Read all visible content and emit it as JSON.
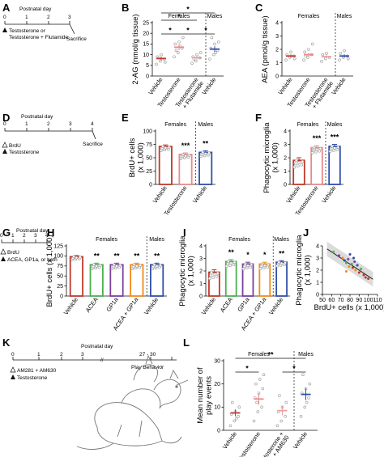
{
  "figure": {
    "panel_letters": [
      "A",
      "B",
      "C",
      "D",
      "E",
      "F",
      "G",
      "H",
      "I",
      "J",
      "K",
      "L"
    ],
    "timelines": {
      "A": {
        "title": "Postnatal day",
        "days": [
          "0",
          "1",
          "2",
          "3"
        ],
        "treatment": "Testosterone or\nTestosterone + Flutamide",
        "end_label": "Sacrifice"
      },
      "D": {
        "title": "Postnatal day",
        "days": [
          "0",
          "1",
          "2",
          "3",
          "4"
        ],
        "treat1": "BrdU",
        "treat2": "Testosterone",
        "end_label": "Sacrifice"
      },
      "G": {
        "title": "Postnatal day",
        "days": [
          "0",
          "1",
          "2",
          "3",
          "4"
        ],
        "treat1": "BrdU",
        "treat2": "ACEA, GP1a, or both"
      },
      "K": {
        "title": "Postnatal day",
        "days": [
          "0",
          "1",
          "2",
          "3"
        ],
        "range": "27 - 30",
        "treat1": "AM281 + AM630",
        "treat2": "Testosterone",
        "end_label": "Play Behavior"
      }
    }
  },
  "chart_data": [
    {
      "panel": "B",
      "type": "scatter",
      "ylabel": "2-AG (nmol/g tissue)",
      "ylim": [
        0,
        25
      ],
      "yticks": [
        "0",
        "5",
        "10",
        "15",
        "20",
        "25"
      ],
      "group_labels": [
        "Females",
        "Males"
      ],
      "categories": [
        "Vehicle",
        "Testosterone",
        "Testosterone\n+ Flutamide",
        "Vehicle"
      ],
      "colors": [
        "#c0392b",
        "#e88a8a",
        "#e8a0a0",
        "#2f4fa8"
      ],
      "means": [
        8.2,
        13.5,
        8.6,
        12.6
      ],
      "sem": [
        0.9,
        1.4,
        1.0,
        1.3
      ],
      "points": [
        [
          5.5,
          7,
          8,
          9,
          10,
          6.5,
          8.5
        ],
        [
          9,
          11,
          13,
          15,
          16,
          18,
          12,
          14
        ],
        [
          6,
          7,
          8.5,
          9,
          10,
          11,
          8
        ],
        [
          8,
          10,
          12,
          13,
          15,
          16,
          18,
          11
        ]
      ],
      "significance": [
        {
          "from": 0,
          "to": 1,
          "label": "*",
          "level": 1
        },
        {
          "from": 1,
          "to": 2,
          "label": "*",
          "level": 1
        },
        {
          "from": 2,
          "to": 3,
          "label": "*",
          "level": 1
        },
        {
          "from": 0,
          "to": 2,
          "label": "*",
          "level": 2
        },
        {
          "from": 0,
          "to": 3,
          "label": "*",
          "level": 3
        }
      ]
    },
    {
      "panel": "C",
      "type": "scatter",
      "ylabel": "AEA (pmol/g tissue)",
      "ylim": [
        0,
        4
      ],
      "yticks": [
        "0",
        "1",
        "2",
        "3",
        "4"
      ],
      "group_labels": [
        "Females",
        "Males"
      ],
      "categories": [
        "Vehicle",
        "Testosterone",
        "Testosterone\n+ Flutamide",
        "Vehicle"
      ],
      "colors": [
        "#c0392b",
        "#e88a8a",
        "#e8a0a0",
        "#2f4fa8"
      ],
      "means": [
        1.5,
        1.6,
        1.45,
        1.5
      ],
      "sem": [
        0.12,
        0.15,
        0.12,
        0.13
      ],
      "points": [
        [
          1.2,
          1.4,
          1.5,
          1.6,
          1.8,
          1.3
        ],
        [
          1.2,
          1.4,
          1.6,
          1.8,
          2.0,
          2.4,
          1.5
        ],
        [
          1.1,
          1.3,
          1.4,
          1.6,
          1.7
        ],
        [
          1.2,
          1.4,
          1.5,
          1.7,
          1.9,
          1.3
        ]
      ]
    },
    {
      "panel": "E",
      "type": "bar",
      "ylabel": "BrdU+ cells\n(x 1,000)",
      "ylim": [
        0,
        100
      ],
      "yticks": [
        "0",
        "25",
        "50",
        "75",
        "100"
      ],
      "group_labels": [
        "Females",
        "Males"
      ],
      "categories": [
        "Vehicle",
        "Testosterone",
        "Vehicle"
      ],
      "colors": [
        "#c0392b",
        "#e88a8a",
        "#2f4fa8"
      ],
      "values": [
        71,
        56,
        60
      ],
      "sem": [
        3,
        3,
        3
      ],
      "significance_labels": [
        "",
        "***",
        "**"
      ]
    },
    {
      "panel": "F",
      "type": "bar",
      "ylabel": "Phagocytic microglia\n(x 1,000)",
      "ylim": [
        0,
        4
      ],
      "yticks": [
        "0",
        "1",
        "2",
        "3",
        "4"
      ],
      "group_labels": [
        "Females",
        "Males"
      ],
      "categories": [
        "Vehicle",
        "Testosterone",
        "Vehicle"
      ],
      "colors": [
        "#c0392b",
        "#e88a8a",
        "#2f4fa8"
      ],
      "values": [
        1.8,
        2.75,
        2.85
      ],
      "sem": [
        0.2,
        0.15,
        0.15
      ],
      "significance_labels": [
        "",
        "***",
        "***"
      ]
    },
    {
      "panel": "H",
      "type": "bar",
      "ylabel": "BrdU+ cells (x 1,000)",
      "ylim": [
        0,
        125
      ],
      "yticks": [
        "0",
        "25",
        "50",
        "75",
        "100",
        "125"
      ],
      "group_labels": [
        "Females",
        "Males"
      ],
      "categories": [
        "Vehicle",
        "ACEA",
        "GP1a",
        "ACEA + GP1a",
        "Vehicle"
      ],
      "colors": [
        "#c0392b",
        "#4caf50",
        "#7b3fa0",
        "#f08c1a",
        "#2f4fa8"
      ],
      "values": [
        98,
        78,
        78,
        78,
        78
      ],
      "sem": [
        3,
        4,
        4,
        4,
        4
      ],
      "significance_labels": [
        "",
        "**",
        "**",
        "**",
        "**"
      ]
    },
    {
      "panel": "I",
      "type": "bar",
      "ylabel": "Phagocytic microglia\n(x 1,000)",
      "ylim": [
        0,
        4
      ],
      "yticks": [
        "0",
        "1",
        "2",
        "3",
        "4"
      ],
      "group_labels": [
        "Females",
        "Males"
      ],
      "categories": [
        "Vehicle",
        "ACEA",
        "GP1a",
        "ACEA + GP1a",
        "Vehicle"
      ],
      "colors": [
        "#c0392b",
        "#4caf50",
        "#7b3fa0",
        "#f08c1a",
        "#2f4fa8"
      ],
      "values": [
        1.9,
        2.75,
        2.55,
        2.55,
        2.7
      ],
      "sem": [
        0.2,
        0.15,
        0.15,
        0.15,
        0.12
      ],
      "significance_labels": [
        "",
        "**",
        "*",
        "*",
        "**"
      ]
    },
    {
      "panel": "J",
      "type": "scatter",
      "ylabel": "Phagocytic microglia\n(x 1,000)",
      "xlabel": "BrdU+ cells (x 1,000)",
      "xlim": [
        50,
        110
      ],
      "ylim": [
        0,
        4
      ],
      "xticks": [
        "50",
        "60",
        "70",
        "80",
        "90",
        "100",
        "110"
      ],
      "yticks": [
        "0",
        "1",
        "2",
        "3",
        "4"
      ],
      "points": [
        {
          "x": 62,
          "y": 3.5,
          "c": "#4caf50"
        },
        {
          "x": 68,
          "y": 3.2,
          "c": "#7b3fa0"
        },
        {
          "x": 72,
          "y": 3.0,
          "c": "#f08c1a"
        },
        {
          "x": 74,
          "y": 2.8,
          "c": "#2f4fa8"
        },
        {
          "x": 76,
          "y": 2.6,
          "c": "#4caf50"
        },
        {
          "x": 78,
          "y": 2.9,
          "c": "#7b3fa0"
        },
        {
          "x": 79,
          "y": 2.3,
          "c": "#f08c1a"
        },
        {
          "x": 80,
          "y": 3.3,
          "c": "#2f4fa8"
        },
        {
          "x": 82,
          "y": 2.5,
          "c": "#4caf50"
        },
        {
          "x": 83,
          "y": 2.2,
          "c": "#c0392b"
        },
        {
          "x": 85,
          "y": 2.7,
          "c": "#7b3fa0"
        },
        {
          "x": 86,
          "y": 2.0,
          "c": "#f08c1a"
        },
        {
          "x": 88,
          "y": 2.4,
          "c": "#2f4fa8"
        },
        {
          "x": 90,
          "y": 1.8,
          "c": "#c0392b"
        },
        {
          "x": 92,
          "y": 2.1,
          "c": "#4caf50"
        },
        {
          "x": 95,
          "y": 1.6,
          "c": "#c0392b"
        },
        {
          "x": 97,
          "y": 1.4,
          "c": "#c0392b"
        },
        {
          "x": 100,
          "y": 1.3,
          "c": "#c0392b"
        },
        {
          "x": 76,
          "y": 1.9,
          "c": "#f08c1a"
        },
        {
          "x": 84,
          "y": 3.0,
          "c": "#2f4fa8"
        }
      ],
      "fit": {
        "x": [
          55,
          105
        ],
        "y": [
          3.75,
          1.25
        ]
      }
    },
    {
      "panel": "L",
      "type": "scatter",
      "ylabel": "Mean number of\nplay events",
      "ylim": [
        0,
        30
      ],
      "yticks": [
        "0",
        "10",
        "20",
        "30"
      ],
      "group_labels": [
        "Females",
        "Males"
      ],
      "categories": [
        "Vehicle",
        "Testosterone",
        "Testosterone +\nAM281 + AM630",
        "Vehicle"
      ],
      "colors": [
        "#c0392b",
        "#e88a8a",
        "#e8a0a0",
        "#2f4fa8"
      ],
      "means": [
        7.5,
        13.5,
        8.5,
        15.5
      ],
      "sem": [
        1.5,
        2.5,
        2,
        2.5
      ],
      "points": [
        [
          2,
          4,
          6,
          7,
          8,
          10,
          12,
          5
        ],
        [
          4,
          8,
          10,
          14,
          16,
          18,
          20,
          22,
          24,
          12
        ],
        [
          2,
          4,
          6,
          8,
          10,
          12,
          15
        ],
        [
          6,
          10,
          14,
          16,
          18,
          20,
          24,
          12
        ]
      ],
      "significance": [
        {
          "from": 0,
          "to": 1,
          "label": "*",
          "level": 1
        },
        {
          "from": 2,
          "to": 3,
          "label": "*",
          "level": 1
        },
        {
          "from": 0,
          "to": 3,
          "label": "**",
          "level": 2
        }
      ]
    }
  ]
}
